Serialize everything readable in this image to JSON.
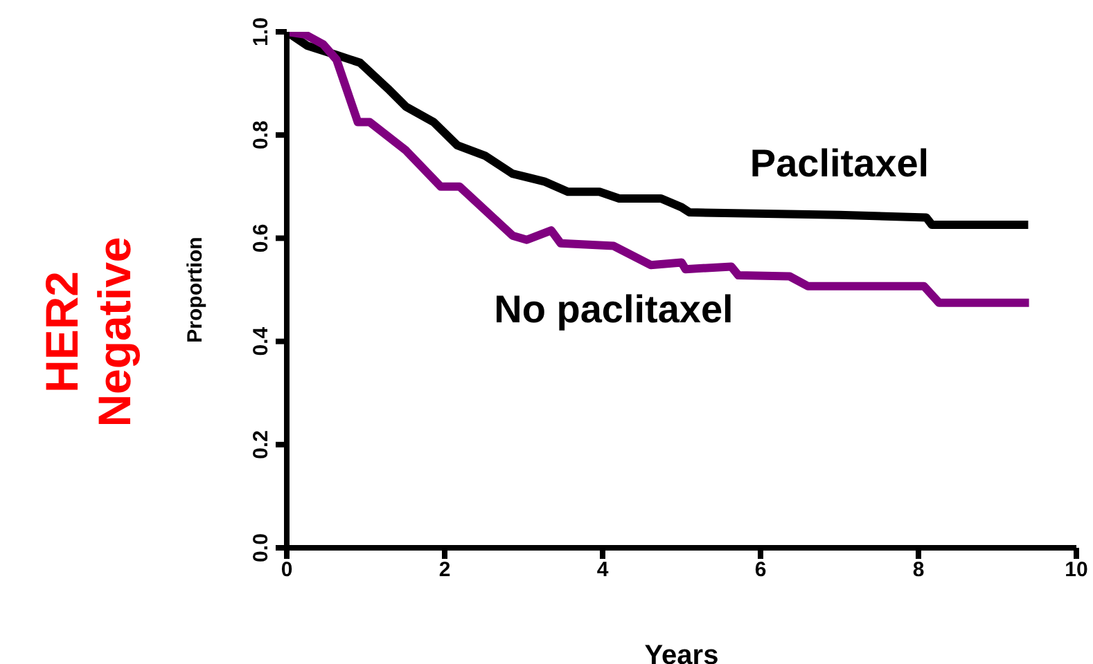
{
  "chart_data": {
    "type": "line",
    "title": "HER2 Negative",
    "xlabel": "Years",
    "ylabel": "Proportion",
    "xlim": [
      0,
      10
    ],
    "xticks": [
      0,
      2,
      4,
      6,
      8,
      10
    ],
    "ylim": [
      0,
      1
    ],
    "yticks": [
      {
        "value": 0,
        "label": "0.0"
      },
      0.2,
      0.4,
      0.6,
      0.8,
      {
        "value": 1,
        "label": "1.0"
      }
    ],
    "grid": false,
    "legend": false,
    "marker": "none",
    "line_style": "solid",
    "series": [
      {
        "name": "Paclitaxel",
        "color": "#000000",
        "x": [
          0,
          0.26,
          0.63,
          0.93,
          1.28,
          1.51,
          1.86,
          2.16,
          2.51,
          2.86,
          3.26,
          3.56,
          3.96,
          4.21,
          4.74,
          5.0,
          5.1,
          7.0,
          8.1,
          8.17,
          9.39
        ],
        "values": [
          1,
          0.973,
          0.955,
          0.94,
          0.89,
          0.855,
          0.825,
          0.78,
          0.76,
          0.725,
          0.71,
          0.69,
          0.69,
          0.677,
          0.677,
          0.66,
          0.65,
          0.645,
          0.64,
          0.626,
          0.626
        ]
      },
      {
        "name": "No paclitaxel",
        "color": "#800080",
        "x": [
          0,
          0.23,
          0.46,
          0.63,
          0.9,
          1.05,
          1.51,
          1.95,
          2.19,
          2.86,
          3.04,
          3.35,
          3.47,
          4.14,
          4.61,
          5.0,
          5.05,
          5.63,
          5.72,
          6.37,
          6.6,
          8.07,
          8.26,
          9.4
        ],
        "values": [
          1,
          0.995,
          0.976,
          0.946,
          0.825,
          0.825,
          0.77,
          0.7,
          0.7,
          0.605,
          0.597,
          0.615,
          0.59,
          0.585,
          0.548,
          0.553,
          0.54,
          0.545,
          0.528,
          0.526,
          0.507,
          0.507,
          0.475,
          0.475
        ]
      }
    ]
  }
}
